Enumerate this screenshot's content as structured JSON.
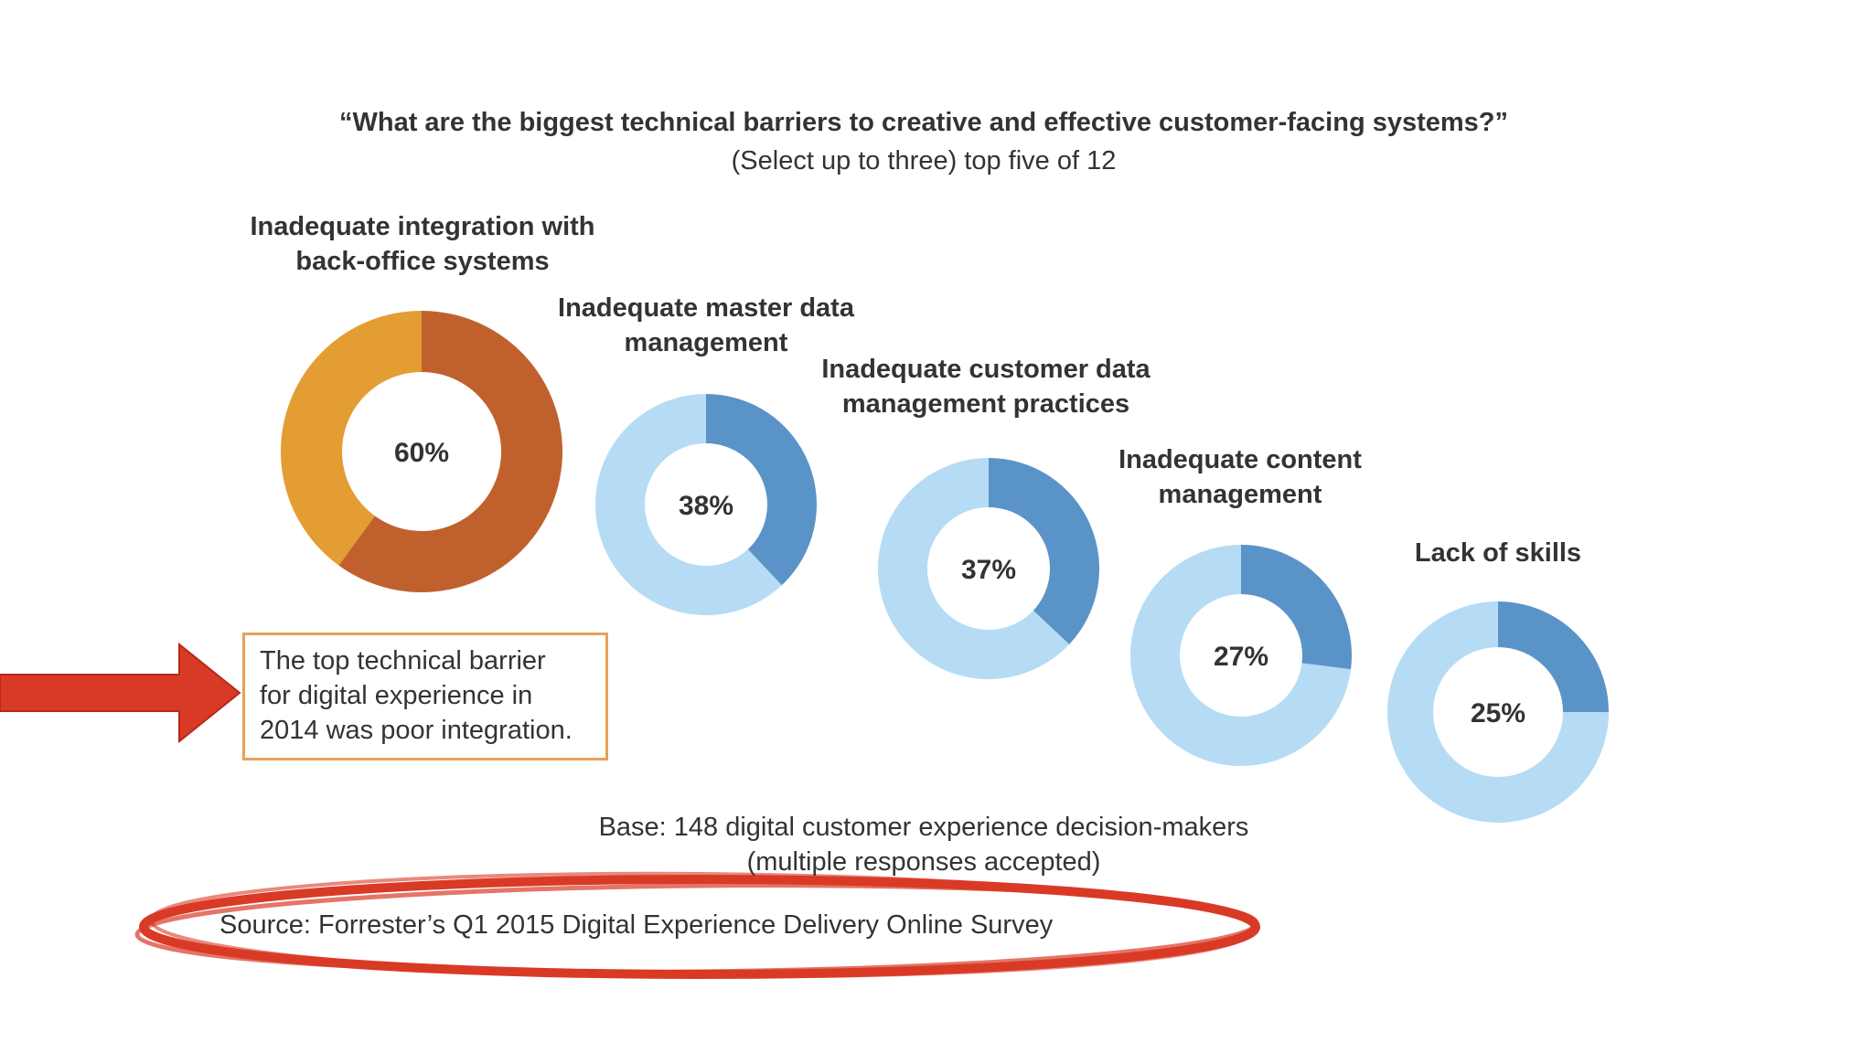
{
  "chart_data": {
    "type": "pie",
    "subtype": "donut",
    "title": "“What are the biggest technical barriers to creative and effective customer-facing systems?”",
    "subtitle": "(Select up to three) top five of 12",
    "unit": "%",
    "series": [
      {
        "name": "Inadequate integration with back-office systems",
        "label_lines": [
          "Inadequate integration with",
          "back-office systems"
        ],
        "value": 60,
        "value_label": "60%",
        "fill_color": "#c0612d",
        "rest_color": "#e49d33"
      },
      {
        "name": "Inadequate master data management",
        "label_lines": [
          "Inadequate master data",
          "management"
        ],
        "value": 38,
        "value_label": "38%",
        "fill_color": "#5a93c8",
        "rest_color": "#b5dcf4"
      },
      {
        "name": "Inadequate customer data management practices",
        "label_lines": [
          "Inadequate customer data",
          "management practices"
        ],
        "value": 37,
        "value_label": "37%",
        "fill_color": "#5a93c8",
        "rest_color": "#b5dcf4"
      },
      {
        "name": "Inadequate content management",
        "label_lines": [
          "Inadequate content",
          "management"
        ],
        "value": 27,
        "value_label": "27%",
        "fill_color": "#5a93c8",
        "rest_color": "#b5dcf4"
      },
      {
        "name": "Lack of skills",
        "label_lines": [
          "Lack of skills"
        ],
        "value": 25,
        "value_label": "25%",
        "fill_color": "#5a93c8",
        "rest_color": "#b5dcf4"
      }
    ],
    "base_note": [
      "Base: 148 digital customer experience decision-makers",
      "(multiple responses accepted)"
    ]
  },
  "callout": {
    "lines": [
      "The top technical barrier",
      "for digital experience in",
      "2014 was poor integration."
    ],
    "border_color": "#e8a05a"
  },
  "source": "Source: Forrester’s Q1 2015 Digital Experience Delivery Online Survey",
  "annotations": {
    "arrow_color": "#d93a26",
    "ellipse_color": "#d93a26",
    "arrow_icon": "right-arrow-icon",
    "ellipse_icon": "highlight-ellipse-icon"
  }
}
